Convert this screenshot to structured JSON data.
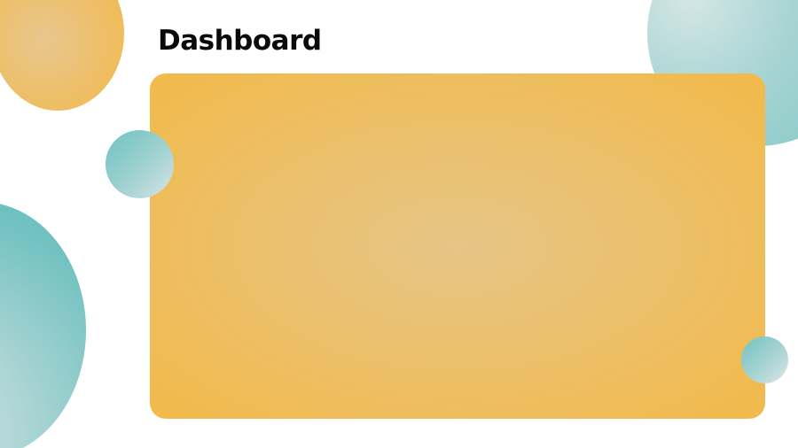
{
  "header": {
    "title": "Dashboard"
  },
  "colors": {
    "accent_orange": "#f1b94e",
    "accent_teal": "#6fc2c2",
    "background": "#ffffff",
    "text": "#0a0a0a"
  }
}
